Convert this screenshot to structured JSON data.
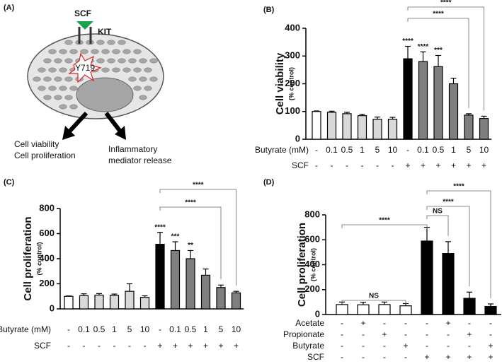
{
  "diagram": {
    "label": "(A)",
    "ligand": "SCF",
    "receptor": "KIT",
    "site": "Y719",
    "left_output": [
      "Cell viability",
      "Cell proliferation"
    ],
    "right_output": [
      "Inflammatory",
      "mediator release"
    ]
  },
  "chart_data": [
    {
      "type": "bar",
      "panel": "(B)",
      "ylabel": "Cell viability",
      "ylabel_sub": "(% control)",
      "ylim": [
        0,
        400
      ],
      "yticks": [
        0,
        100,
        200,
        300,
        400
      ],
      "values": [
        100,
        97,
        92,
        85,
        72,
        72,
        290,
        280,
        262,
        200,
        87,
        75
      ],
      "errors": [
        2,
        4,
        5,
        5,
        8,
        7,
        45,
        35,
        40,
        20,
        5,
        8
      ],
      "colors": [
        "#ffffff",
        "#d9d9d9",
        "#d9d9d9",
        "#d9d9d9",
        "#d9d9d9",
        "#d9d9d9",
        "#000000",
        "#7f7f7f",
        "#7f7f7f",
        "#7f7f7f",
        "#7f7f7f",
        "#7f7f7f"
      ],
      "annotations": [
        {
          "bar": 6,
          "text": "****"
        },
        {
          "bar": 7,
          "text": "****"
        },
        {
          "bar": 8,
          "text": "***"
        }
      ],
      "brackets": [
        {
          "from": 6,
          "to": 11,
          "text": "****"
        },
        {
          "from": 6,
          "to": 10,
          "text": "****"
        }
      ],
      "rows": [
        {
          "label": "Butyrate (mM)",
          "values": [
            "-",
            "0.1",
            "0.5",
            "1",
            "5",
            "10",
            "-",
            "0.1",
            "0.5",
            "1",
            "5",
            "10"
          ]
        },
        {
          "label": "SCF",
          "values": [
            "-",
            "-",
            "-",
            "-",
            "-",
            "-",
            "+",
            "+",
            "+",
            "+",
            "+",
            "+"
          ]
        }
      ]
    },
    {
      "type": "bar",
      "panel": "(C)",
      "ylabel": "Cell proliferation",
      "ylabel_sub": "(% control)",
      "ylim": [
        0,
        800
      ],
      "yticks": [
        0,
        200,
        400,
        600,
        800
      ],
      "values": [
        100,
        105,
        110,
        108,
        140,
        92,
        515,
        465,
        400,
        268,
        170,
        128
      ],
      "errors": [
        3,
        15,
        12,
        10,
        60,
        12,
        95,
        70,
        65,
        50,
        20,
        12
      ],
      "colors": [
        "#ffffff",
        "#d9d9d9",
        "#d9d9d9",
        "#d9d9d9",
        "#d9d9d9",
        "#d9d9d9",
        "#000000",
        "#7f7f7f",
        "#7f7f7f",
        "#7f7f7f",
        "#7f7f7f",
        "#7f7f7f"
      ],
      "annotations": [
        {
          "bar": 6,
          "text": "****"
        },
        {
          "bar": 7,
          "text": "***"
        },
        {
          "bar": 8,
          "text": "**"
        }
      ],
      "brackets": [
        {
          "from": 6,
          "to": 11,
          "text": "****"
        },
        {
          "from": 6,
          "to": 10,
          "text": "****"
        }
      ],
      "rows": [
        {
          "label": "Butyrate (mM)",
          "values": [
            "-",
            "0.1",
            "0.5",
            "1",
            "5",
            "10",
            "-",
            "0.1",
            "0.5",
            "1",
            "5",
            "10"
          ]
        },
        {
          "label": "SCF",
          "values": [
            "-",
            "-",
            "-",
            "-",
            "-",
            "-",
            "+",
            "+",
            "+",
            "+",
            "+",
            "+"
          ]
        }
      ]
    },
    {
      "type": "bar",
      "panel": "(D)",
      "ylabel": "Cell proliferation",
      "ylabel_sub": "(% control)",
      "ylim": [
        0,
        800
      ],
      "yticks": [
        0,
        200,
        400,
        600,
        800
      ],
      "values": [
        80,
        78,
        80,
        70,
        590,
        490,
        130,
        65
      ],
      "errors": [
        20,
        20,
        20,
        18,
        110,
        95,
        50,
        20
      ],
      "colors": [
        "#ffffff",
        "#ffffff",
        "#ffffff",
        "#ffffff",
        "#000000",
        "#000000",
        "#000000",
        "#000000"
      ],
      "annotations": [],
      "brackets": [
        {
          "from": 0,
          "to": 4,
          "text": "****"
        },
        {
          "from": 4,
          "to": 5,
          "text": "NS"
        },
        {
          "from": 4,
          "to": 6,
          "text": "****"
        },
        {
          "from": 4,
          "to": 7,
          "text": "****"
        },
        {
          "from": 0,
          "to": 3,
          "text": "NS"
        }
      ],
      "rows": [
        {
          "label": "Acetate",
          "values": [
            "-",
            "+",
            "-",
            "-",
            "-",
            "+",
            "-",
            "-"
          ]
        },
        {
          "label": "Propionate",
          "values": [
            "-",
            "-",
            "+",
            "-",
            "-",
            "-",
            "+",
            "-"
          ]
        },
        {
          "label": "Butyrate",
          "values": [
            "-",
            "-",
            "-",
            "+",
            "-",
            "-",
            "-",
            "+"
          ]
        },
        {
          "label": "SCF",
          "values": [
            "-",
            "-",
            "-",
            "-",
            "+",
            "+",
            "+",
            "+"
          ]
        }
      ]
    }
  ]
}
